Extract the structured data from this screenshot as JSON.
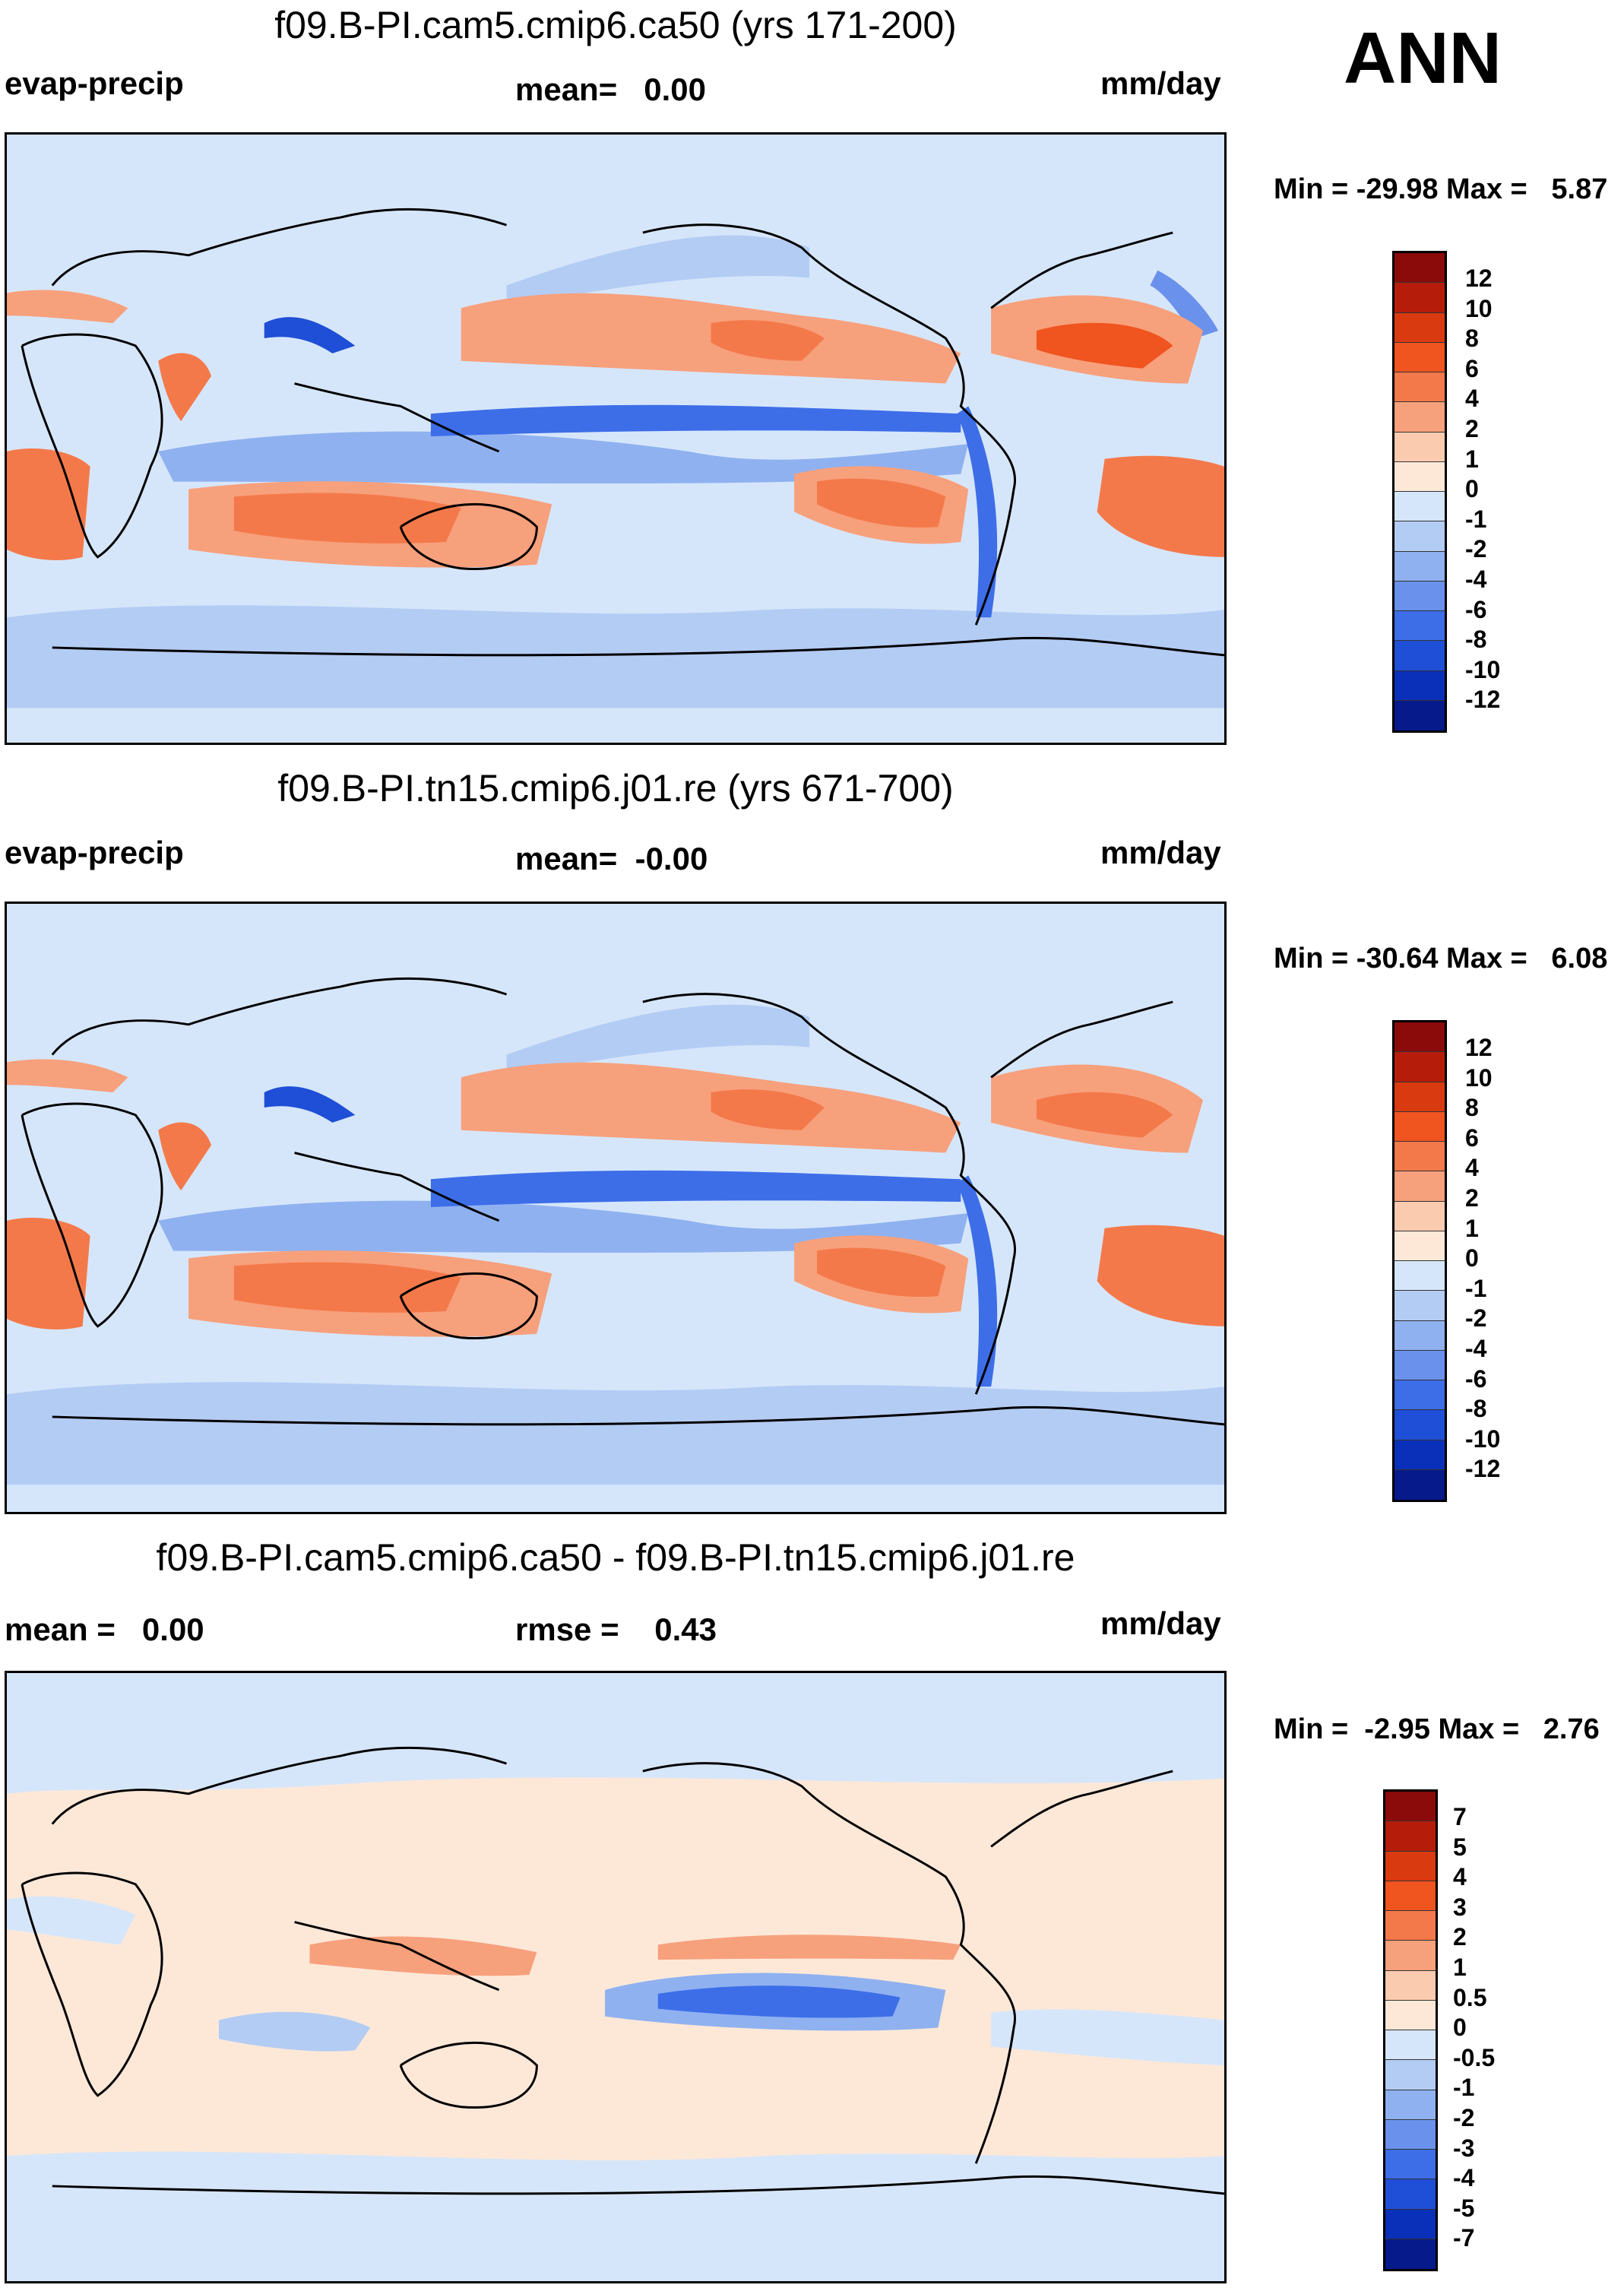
{
  "season": "ANN",
  "panels": [
    {
      "title": "f09.B-PI.cam5.cmip6.ca50 (yrs 171-200)",
      "left_label": "evap-precip",
      "mid_label": "mean=   0.00",
      "right_label": "mm/day",
      "minmax": "Min = -29.98 Max =   5.87",
      "colorbar_levels": [
        "12",
        "10",
        "8",
        "6",
        "4",
        "2",
        "1",
        "0",
        "-1",
        "-2",
        "-4",
        "-6",
        "-8",
        "-10",
        "-12"
      ]
    },
    {
      "title": "f09.B-PI.tn15.cmip6.j01.re (yrs 671-700)",
      "left_label": "evap-precip",
      "mid_label": "mean=  -0.00",
      "right_label": "mm/day",
      "minmax": "Min = -30.64 Max =   6.08",
      "colorbar_levels": [
        "12",
        "10",
        "8",
        "6",
        "4",
        "2",
        "1",
        "0",
        "-1",
        "-2",
        "-4",
        "-6",
        "-8",
        "-10",
        "-12"
      ]
    },
    {
      "title": "f09.B-PI.cam5.cmip6.ca50 - f09.B-PI.tn15.cmip6.j01.re",
      "left_label": "mean =   0.00",
      "mid_label": "rmse =    0.43",
      "right_label": "mm/day",
      "minmax": "Min =  -2.95 Max =   2.76",
      "colorbar_levels": [
        "7",
        "5",
        "4",
        "3",
        "2",
        "1",
        "0.5",
        "0",
        "-0.5",
        "-1",
        "-2",
        "-3",
        "-4",
        "-5",
        "-7"
      ]
    }
  ],
  "colors": {
    "colorbar": [
      "#8b0a0a",
      "#b51d0a",
      "#d93a10",
      "#f0541f",
      "#f4794a",
      "#f7a07c",
      "#fbcbb0",
      "#fde8d8",
      "#d6e6fa",
      "#b3ccf4",
      "#8fb1f0",
      "#6a92ec",
      "#3d6ee8",
      "#1f4fd6",
      "#0a2fb8",
      "#061a8c"
    ],
    "map_background": "#d6e6fa",
    "warm_field": "#f7a07c",
    "warm_strong": "#f0541f",
    "cool_field": "#8fb1f0",
    "cool_strong": "#3d6ee8",
    "diff_background": "#fde8d8",
    "diff_cool": "#b3ccf4"
  }
}
